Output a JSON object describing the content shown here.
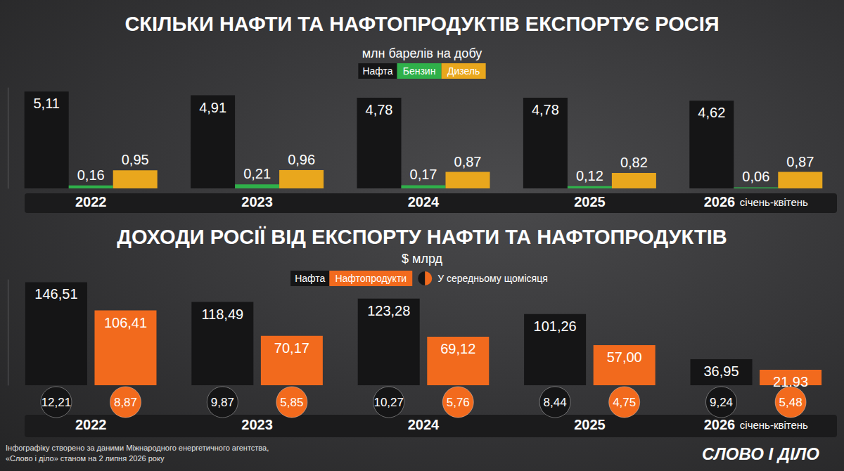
{
  "chart_data": [
    {
      "type": "bar",
      "title": "СКІЛЬКИ НАФТИ ТА НАФТОПРОДУКТІВ ЕКСПОРТУЄ РОСІЯ",
      "subtitle": "млн барелів на добу",
      "categories": [
        "2022",
        "2023",
        "2024",
        "2025",
        "2026"
      ],
      "annotations": [
        {
          "category": "2026",
          "text": "січень-квітень"
        }
      ],
      "series": [
        {
          "name": "Нафта",
          "color": "#151516",
          "values": [
            5.11,
            4.91,
            4.78,
            4.78,
            4.62
          ],
          "value_labels": [
            "5,11",
            "4,91",
            "4,78",
            "4,78",
            "4,62"
          ]
        },
        {
          "name": "Бензин",
          "color": "#2fb04a",
          "values": [
            0.16,
            0.21,
            0.17,
            0.12,
            0.06
          ],
          "value_labels": [
            "0,16",
            "0,21",
            "0,17",
            "0,12",
            "0,06"
          ]
        },
        {
          "name": "Дизель",
          "color": "#e9a71d",
          "values": [
            0.95,
            0.96,
            0.87,
            0.82,
            0.87
          ],
          "value_labels": [
            "0,95",
            "0,96",
            "0,87",
            "0,82",
            "0,87"
          ]
        }
      ],
      "ylim": [
        0,
        5.3
      ],
      "yticks": [],
      "grid": false,
      "legend": "top",
      "data_labels": true,
      "tick_labels": "x"
    },
    {
      "type": "bar",
      "title": "ДОХОДИ РОСІЇ ВІД ЕКСПОРТУ НАФТИ ТА НАФТОПРОДУКТІВ",
      "subtitle": "$ млрд",
      "categories": [
        "2022",
        "2023",
        "2024",
        "2025",
        "2026"
      ],
      "annotations": [
        {
          "category": "2026",
          "text": "січень-квітень"
        }
      ],
      "monthly_average_name": "У середньому щомісяця",
      "series": [
        {
          "name": "Нафта",
          "color": "#151516",
          "values": [
            146.51,
            118.49,
            123.28,
            101.26,
            36.95
          ],
          "value_labels": [
            "146,51",
            "118,49",
            "123,28",
            "101,26",
            "36,95"
          ],
          "monthly_average": [
            12.21,
            9.87,
            10.27,
            8.44,
            9.24
          ],
          "monthly_average_labels": [
            "12,21",
            "9,87",
            "10,27",
            "8,44",
            "9,24"
          ]
        },
        {
          "name": "Нафтопродукти",
          "color": "#f26a1d",
          "values": [
            106.41,
            70.17,
            69.12,
            57.0,
            21.93
          ],
          "value_labels": [
            "106,41",
            "70,17",
            "69,12",
            "57,00",
            "21,93"
          ],
          "monthly_average": [
            8.87,
            5.85,
            5.76,
            4.75,
            5.48
          ],
          "monthly_average_labels": [
            "8,87",
            "5,85",
            "5,76",
            "4,75",
            "5,48"
          ]
        }
      ],
      "ylim": [
        0,
        150
      ],
      "yticks": [],
      "grid": false,
      "legend": "top",
      "data_labels": true,
      "tick_labels": "x"
    }
  ],
  "source_note": [
    "Інфографіку створено за даними Міжнародного енергетичного агентства,",
    "«Слово і діло» станом на 2 липня 2026 року"
  ],
  "logo": "СЛОВО І ДІЛО"
}
